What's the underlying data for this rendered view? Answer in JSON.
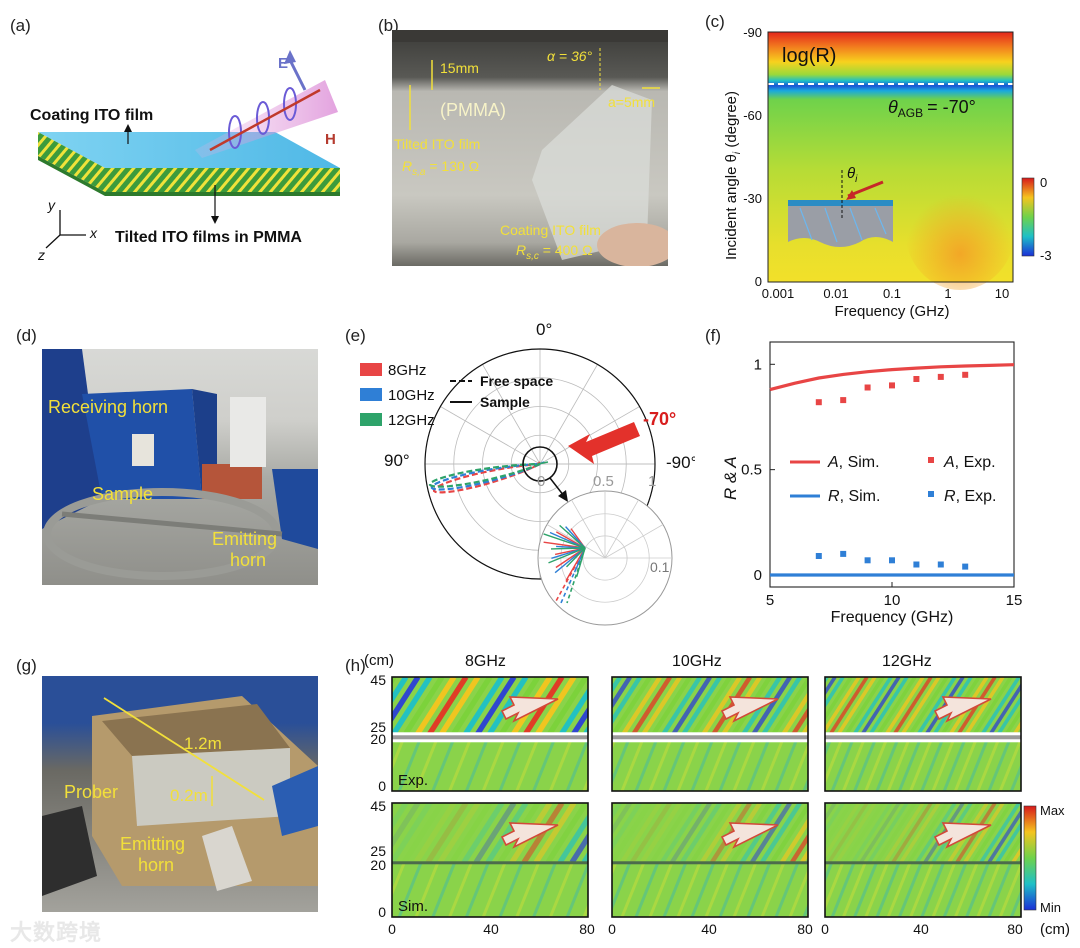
{
  "panels": {
    "a": "(a)",
    "b": "(b)",
    "c": "(c)",
    "d": "(d)",
    "e": "(e)",
    "f": "(f)",
    "g": "(g)",
    "h": "(h)"
  },
  "panel_a": {
    "e_label": "E",
    "h_label": "H",
    "coating": "Coating ITO film",
    "tilted": "Tilted ITO films in PMMA",
    "axis_y": "y",
    "axis_x": "x",
    "axis_z": "z"
  },
  "panel_b": {
    "alpha_angle": "α = 36°",
    "thickness": "15mm",
    "pmma": "(PMMA)",
    "spacing": "a=5mm",
    "tilted": "Tilted ITO film",
    "rsa": "R",
    "rsa_sub": "s,a",
    "rsa_val": "= 130 Ω",
    "coating": "Coating ITO film",
    "rsc": "R",
    "rsc_sub": "s,c",
    "rsc_val": "= 400 Ω"
  },
  "panel_c": {
    "title": "log(R)",
    "agb": "θ",
    "agb_sub": "AGB",
    "agb_val": "= -70°",
    "theta_i": "θ",
    "theta_i_sub": "i",
    "ylabel": "Incident angle θ",
    "ylabel_sub": "i",
    "ylabel_unit": " (degree)",
    "xlabel": "Frequency (GHz)",
    "yticks": [
      "-90",
      "-60",
      "-30",
      "0"
    ],
    "xticks": [
      "0.001",
      "0.01",
      "0.1",
      "1",
      "10"
    ],
    "cbar_top": "0",
    "cbar_bottom": "-3",
    "colors": {
      "top": "#e3261c",
      "green": "#7bd23a",
      "blue_band": "#1b55d6"
    }
  },
  "panel_d": {
    "receiving": "Receiving horn",
    "sample": "Sample",
    "emitting": "Emitting",
    "horn": "horn"
  },
  "chart_data": [
    {
      "type": "scatter",
      "panel": "e",
      "kind": "polar",
      "angle_labels": [
        "0°",
        "90°",
        "-90°"
      ],
      "radial_ticks": [
        "0",
        "0.5",
        "1"
      ],
      "inset_tick": "0.1",
      "incident": "-70°",
      "legend": [
        {
          "name": "8GHz",
          "color": "#e84545"
        },
        {
          "name": "10GHz",
          "color": "#2f7fd6"
        },
        {
          "name": "12GHz",
          "color": "#2ea36a"
        }
      ],
      "line_legend": [
        {
          "name": "Free space",
          "style": "dashed"
        },
        {
          "name": "Sample",
          "style": "solid"
        }
      ],
      "lobe_angle_deg": 70,
      "lobe_magnitude": 1.0
    },
    {
      "type": "line",
      "panel": "f",
      "xlabel": "Frequency (GHz)",
      "ylabel": "R & A",
      "xlim": [
        5,
        15
      ],
      "ylim": [
        0,
        1
      ],
      "xticks": [
        "5",
        "10",
        "15"
      ],
      "yticks": [
        "0",
        "0.5",
        "1"
      ],
      "series": [
        {
          "name": "A, Sim.",
          "style": "line",
          "color": "#e84545",
          "x": [
            5,
            6,
            7,
            8,
            9,
            10,
            11,
            12,
            13,
            14,
            15
          ],
          "y": [
            0.88,
            0.91,
            0.935,
            0.952,
            0.965,
            0.975,
            0.982,
            0.988,
            0.992,
            0.995,
            0.998
          ]
        },
        {
          "name": "A, Exp.",
          "style": "marker",
          "color": "#e84545",
          "x": [
            7,
            8,
            9,
            10,
            11,
            12,
            13
          ],
          "y": [
            0.82,
            0.83,
            0.89,
            0.9,
            0.93,
            0.94,
            0.95
          ]
        },
        {
          "name": "R, Sim.",
          "style": "line",
          "color": "#2f7fd6",
          "x": [
            5,
            10,
            15
          ],
          "y": [
            0.0,
            0.0,
            0.0
          ]
        },
        {
          "name": "R, Exp.",
          "style": "marker",
          "color": "#2f7fd6",
          "x": [
            7,
            8,
            9,
            10,
            11,
            12,
            13
          ],
          "y": [
            0.09,
            0.1,
            0.07,
            0.07,
            0.05,
            0.05,
            0.04
          ]
        }
      ],
      "legend_labels": [
        {
          "sym": "A",
          "text": ", Sim."
        },
        {
          "sym": "A",
          "text": ", Exp."
        },
        {
          "sym": "R",
          "text": ", Sim."
        },
        {
          "sym": "R",
          "text": ", Exp."
        }
      ]
    },
    {
      "type": "heatmap",
      "panel": "h",
      "columns": [
        "8GHz",
        "10GHz",
        "12GHz"
      ],
      "rows": [
        "Exp.",
        "Sim."
      ],
      "y_unit": "(cm)",
      "x_unit": "(cm)",
      "yticks": [
        "45",
        "25",
        "20",
        "0"
      ],
      "xticks": [
        "0",
        "40",
        "80"
      ],
      "cbar_top": "Max",
      "cbar_bottom": "Min",
      "fringe_spacing": [
        12,
        10,
        8
      ]
    }
  ],
  "panel_g": {
    "length": "1.2m",
    "height": "0.2m",
    "prober": "Prober",
    "emitting": "Emitting",
    "horn": "horn"
  },
  "watermark": "大数跨境"
}
